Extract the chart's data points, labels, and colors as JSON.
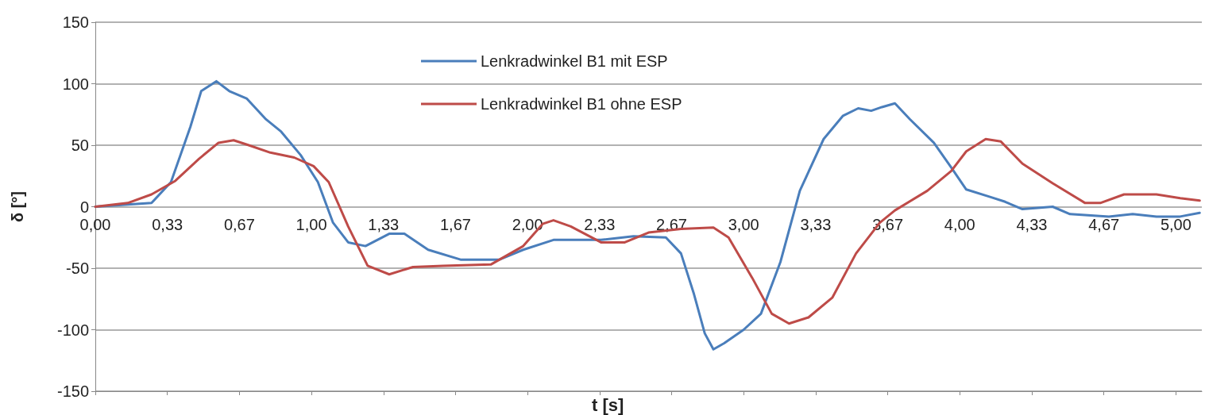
{
  "chart_data": {
    "type": "line",
    "xlabel": "t [s]",
    "ylabel": "δ [°]",
    "xlim": [
      0,
      5.12
    ],
    "ylim": [
      -150,
      150
    ],
    "xticks": [
      {
        "value": 0,
        "label": "0,00"
      },
      {
        "value": 0.3333,
        "label": "0,33"
      },
      {
        "value": 0.6667,
        "label": "0,67"
      },
      {
        "value": 1,
        "label": "1,00"
      },
      {
        "value": 1.3333,
        "label": "1,33"
      },
      {
        "value": 1.6667,
        "label": "1,67"
      },
      {
        "value": 2,
        "label": "2,00"
      },
      {
        "value": 2.3333,
        "label": "2,33"
      },
      {
        "value": 2.6667,
        "label": "2,67"
      },
      {
        "value": 3,
        "label": "3,00"
      },
      {
        "value": 3.3333,
        "label": "3,33"
      },
      {
        "value": 3.6667,
        "label": "3,67"
      },
      {
        "value": 4,
        "label": "4,00"
      },
      {
        "value": 4.3333,
        "label": "4,33"
      },
      {
        "value": 4.6667,
        "label": "4,67"
      },
      {
        "value": 5,
        "label": "5,00"
      }
    ],
    "yticks": [
      -150,
      -100,
      -50,
      0,
      50,
      100,
      150
    ],
    "grid": "y",
    "legend": "top",
    "marker": "none",
    "line_style": "solid",
    "series": [
      {
        "name": "Lenkradwinkel B1 mit ESP",
        "color": "#4a7ebb",
        "x": [
          0,
          0.26,
          0.35,
          0.44,
          0.49,
          0.56,
          0.62,
          0.7,
          0.79,
          0.86,
          0.95,
          1.03,
          1.1,
          1.17,
          1.25,
          1.36,
          1.43,
          1.54,
          1.69,
          1.87,
          1.98,
          2.12,
          2.34,
          2.49,
          2.64,
          2.71,
          2.77,
          2.82,
          2.86,
          2.91,
          3,
          3.08,
          3.17,
          3.26,
          3.37,
          3.46,
          3.53,
          3.59,
          3.64,
          3.7,
          3.77,
          3.88,
          3.96,
          4.03,
          4.14,
          4.21,
          4.29,
          4.36,
          4.43,
          4.51,
          4.69,
          4.8,
          4.91,
          5.02,
          5.11
        ],
        "values": [
          0,
          3,
          20,
          65,
          94,
          102,
          94,
          88,
          71,
          61,
          42,
          20,
          -13,
          -29,
          -32,
          -22,
          -22,
          -35,
          -43,
          -43,
          -35,
          -27,
          -27,
          -24,
          -25,
          -38,
          -71,
          -103,
          -116,
          -111,
          -100,
          -87,
          -45,
          13,
          55,
          74,
          80,
          78,
          81,
          84,
          71,
          52,
          32,
          14,
          8,
          4,
          -2,
          -1,
          0,
          -6,
          -8,
          -6,
          -8,
          -8,
          -5
        ]
      },
      {
        "name": "Lenkradwinkel B1 ohne ESP",
        "color": "#be4b48",
        "x": [
          0,
          0.15,
          0.26,
          0.37,
          0.48,
          0.57,
          0.64,
          0.71,
          0.81,
          0.92,
          1.01,
          1.08,
          1.17,
          1.26,
          1.36,
          1.47,
          1.61,
          1.83,
          1.98,
          2.07,
          2.12,
          2.2,
          2.34,
          2.45,
          2.56,
          2.71,
          2.86,
          2.93,
          3.04,
          3.13,
          3.21,
          3.3,
          3.41,
          3.52,
          3.63,
          3.7,
          3.85,
          3.96,
          4.03,
          4.12,
          4.19,
          4.29,
          4.43,
          4.58,
          4.65,
          4.76,
          4.91,
          5.02,
          5.11
        ],
        "values": [
          0,
          3,
          10,
          21,
          39,
          52,
          54,
          50,
          44,
          40,
          33,
          20,
          -16,
          -48,
          -55,
          -49,
          -48,
          -47,
          -32,
          -14,
          -11,
          -16,
          -29,
          -29,
          -21,
          -18,
          -17,
          -25,
          -58,
          -87,
          -95,
          -90,
          -74,
          -38,
          -13,
          -3,
          13,
          29,
          45,
          55,
          53,
          35,
          19,
          3,
          3,
          10,
          10,
          7,
          5
        ]
      }
    ]
  }
}
